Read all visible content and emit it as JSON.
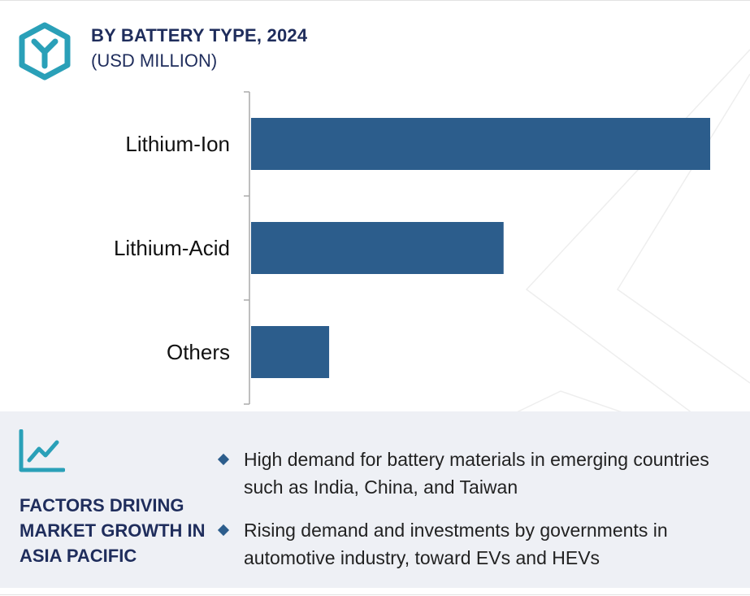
{
  "header": {
    "title": "BY BATTERY TYPE, 2024",
    "subtitle": "(USD MILLION)",
    "logo_icon": "hexagon-y-logo-icon"
  },
  "colors": {
    "bar": "#2c5d8c",
    "title": "#1f2d5c",
    "accent": "#2aa0b8",
    "panel_bg": "#eef0f5"
  },
  "chart_data": {
    "type": "bar",
    "orientation": "horizontal",
    "title": "BY BATTERY TYPE, 2024",
    "subtitle": "(USD MILLION)",
    "categories": [
      "Lithium-Ion",
      "Lithium-Acid",
      "Others"
    ],
    "values": [
      100,
      55,
      17
    ],
    "xlim": [
      0,
      100
    ],
    "grid": false,
    "legend": "none"
  },
  "factors": {
    "icon": "line-chart-icon",
    "title": "FACTORS DRIVING MARKET GROWTH IN ASIA PACIFIC",
    "bullets": [
      "High demand for battery materials in emerging countries such as India, China, and Taiwan",
      "Rising demand and investments by governments in automotive industry, toward EVs and HEVs"
    ]
  }
}
